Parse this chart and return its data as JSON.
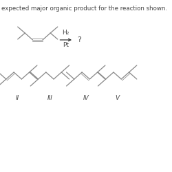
{
  "title_text": "expected major organic product for the reaction shown.",
  "title_fontsize": 6.2,
  "line_color": "#888888",
  "text_color": "#444444",
  "arrow_color": "#333333",
  "double_line_color": "#999999",
  "h2_label": "H₂",
  "pt_label": "Pt",
  "question_mark": "?",
  "labels": [
    "II",
    "III",
    "IV",
    "V"
  ],
  "lw_main": 0.9,
  "lw_double": 0.65
}
